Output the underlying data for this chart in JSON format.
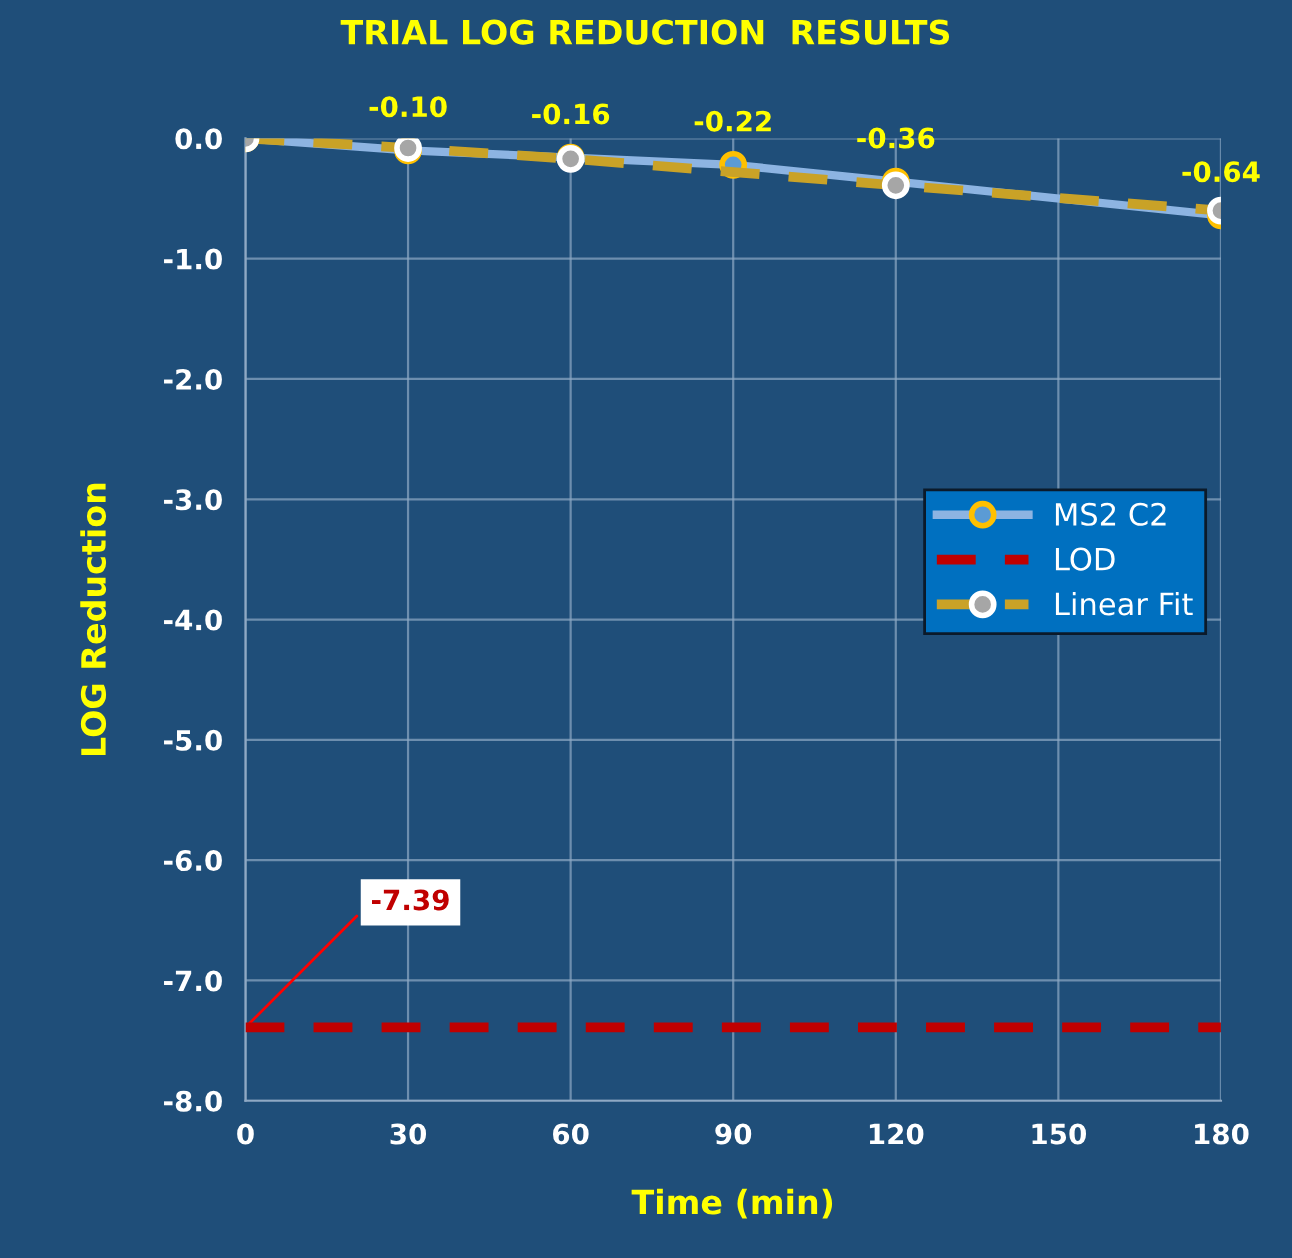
{
  "chart_data": {
    "type": "line",
    "title": "TRIAL LOG REDUCTION  RESULTS",
    "xlabel": "Time (min)",
    "ylabel": "LOG Reduction",
    "series": [
      {
        "name": "MS2 C2",
        "color": "#8db4e2",
        "x": [
          0,
          30,
          60,
          90,
          120,
          180
        ],
        "values": [
          0,
          -0.1,
          -0.16,
          -0.22,
          -0.36,
          -0.64
        ],
        "value_labels": [
          null,
          "-0.10",
          "-0.16",
          "-0.22",
          "-0.36",
          "-0.64"
        ],
        "marker": "circle",
        "line_style": "solid"
      },
      {
        "name": "LOD",
        "color": "#c00000",
        "x": [
          0,
          180
        ],
        "values": [
          -7.39,
          -7.39
        ],
        "marker": "none",
        "line_style": "dashed"
      },
      {
        "name": "Linear Fit",
        "color": "#c9a227",
        "x": [
          0,
          30,
          60,
          120,
          180
        ],
        "values": [
          0,
          -0.08,
          -0.17,
          -0.39,
          -0.6
        ],
        "marker": "circle",
        "line_style": "dashed"
      }
    ],
    "annotations": [
      {
        "text": "-7.39",
        "x": 0,
        "y": -7.39
      }
    ],
    "xlim": [
      0,
      180
    ],
    "xticks": [
      0,
      30,
      60,
      90,
      120,
      150,
      180
    ],
    "ylim": [
      -8,
      0
    ],
    "yticks": [
      {
        "value": 0,
        "label": "0.0"
      },
      {
        "value": -1,
        "label": "-1.0"
      },
      {
        "value": -2,
        "label": "-2.0"
      },
      {
        "value": -3,
        "label": "-3.0"
      },
      {
        "value": -4,
        "label": "-4.0"
      },
      {
        "value": -5,
        "label": "-5.0"
      },
      {
        "value": -6,
        "label": "-6.0"
      },
      {
        "value": -7,
        "label": "-7.0"
      },
      {
        "value": -8,
        "label": "-8.0"
      }
    ],
    "grid": true,
    "legend": "right"
  }
}
